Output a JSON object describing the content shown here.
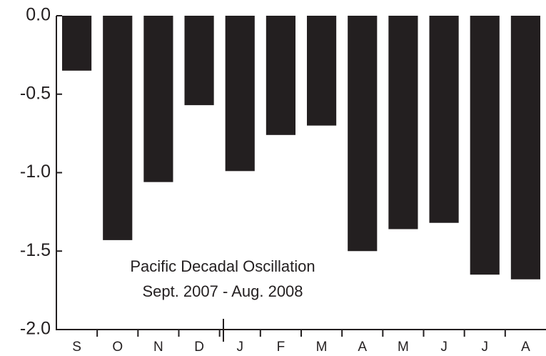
{
  "chart_data": {
    "type": "bar",
    "annotations": [
      "Pacific Decadal Oscillation",
      "Sept. 2007 - Aug. 2008"
    ],
    "categories": [
      "S",
      "O",
      "N",
      "D",
      "J",
      "F",
      "M",
      "A",
      "M",
      "J",
      "J",
      "A"
    ],
    "values": [
      -0.35,
      -1.43,
      -1.06,
      -0.57,
      -0.99,
      -0.76,
      -0.7,
      -1.5,
      -1.36,
      -1.32,
      -1.65,
      -1.68
    ],
    "color": "#231f20",
    "ylim": [
      -2,
      0
    ],
    "yticks": [
      {
        "value": 0,
        "label": "0.0"
      },
      -0.5,
      {
        "value": -1,
        "label": "-1.0"
      },
      -1.5,
      {
        "value": -2,
        "label": "-2.0"
      }
    ]
  }
}
